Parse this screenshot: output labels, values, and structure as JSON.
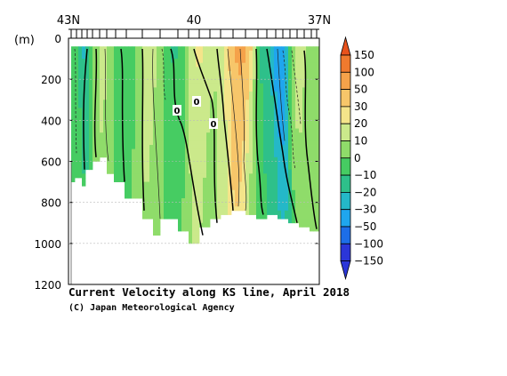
{
  "chart_data": {
    "type": "heatmap",
    "title": "Current Velocity along KS line, April 2018",
    "credit": "(C) Japan Meteorological Agency",
    "ylabel": "(m)",
    "x_tick_labels": [
      "43N",
      "40",
      "37N"
    ],
    "x_range": [
      43,
      37
    ],
    "y_ticks": [
      0,
      200,
      400,
      600,
      800,
      1000,
      1200
    ],
    "ylim": [
      0,
      1200
    ],
    "colorbar_levels": [
      150,
      100,
      50,
      30,
      20,
      10,
      0,
      -10,
      -20,
      -30,
      -50,
      -100,
      -150
    ],
    "colorbar_colors": [
      "#e8521c",
      "#f07a2e",
      "#f5a24a",
      "#f7c66a",
      "#f4e48a",
      "#cbe98b",
      "#8fdc6a",
      "#46cc62",
      "#2ec08a",
      "#24b8c8",
      "#1fa6ee",
      "#1d6ee8",
      "#2b36d8"
    ],
    "contour_labels": [
      "0",
      "0",
      "0"
    ]
  }
}
